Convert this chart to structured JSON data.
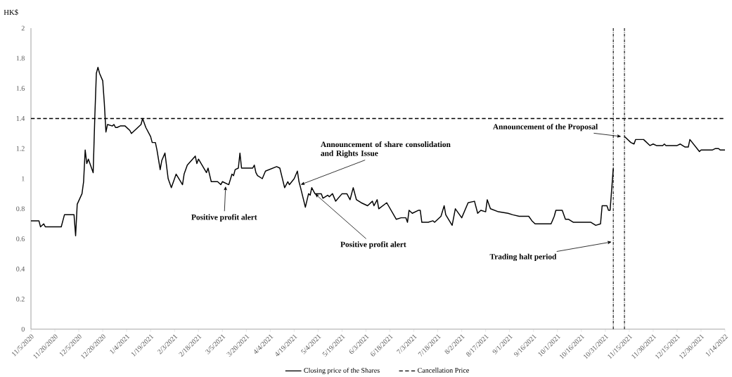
{
  "chart_data": {
    "type": "line",
    "ylabel": "HK$",
    "x": [
      "2020-11-05",
      "2020-11-10",
      "2020-11-11",
      "2020-11-13",
      "2020-11-14",
      "2020-11-24",
      "2020-11-25",
      "2020-11-26",
      "2020-12-02",
      "2020-12-03",
      "2020-12-04",
      "2020-12-07",
      "2020-12-08",
      "2020-12-09",
      "2020-12-10",
      "2020-12-11",
      "2020-12-14",
      "2020-12-15",
      "2020-12-16",
      "2020-12-17",
      "2020-12-18",
      "2020-12-20",
      "2020-12-21",
      "2020-12-22",
      "2020-12-23",
      "2020-12-26",
      "2020-12-27",
      "2020-12-28",
      "2020-12-29",
      "2020-12-31",
      "2021-01-03",
      "2021-01-06",
      "2021-01-07",
      "2021-01-09",
      "2021-01-11",
      "2021-01-13",
      "2021-01-14",
      "2021-01-16",
      "2021-01-19",
      "2021-01-20",
      "2021-01-22",
      "2021-01-23",
      "2021-01-25",
      "2021-01-26",
      "2021-01-28",
      "2021-01-30",
      "2021-02-01",
      "2021-02-04",
      "2021-02-08",
      "2021-02-09",
      "2021-02-11",
      "2021-02-16",
      "2021-02-17",
      "2021-02-18",
      "2021-02-23",
      "2021-02-24",
      "2021-02-26",
      "2021-03-02",
      "2021-03-04",
      "2021-03-05",
      "2021-03-09",
      "2021-03-11",
      "2021-03-12",
      "2021-03-13",
      "2021-03-15",
      "2021-03-16",
      "2021-03-17",
      "2021-03-24",
      "2021-03-25",
      "2021-03-26",
      "2021-03-27",
      "2021-03-30",
      "2021-04-01",
      "2021-04-08",
      "2021-04-10",
      "2021-04-13",
      "2021-04-15",
      "2021-04-16",
      "2021-04-19",
      "2021-04-21",
      "2021-04-22",
      "2021-04-23",
      "2021-04-26",
      "2021-04-28",
      "2021-04-29",
      "2021-04-30",
      "2021-05-02",
      "2021-05-06",
      "2021-05-07",
      "2021-05-10",
      "2021-05-11",
      "2021-05-13",
      "2021-05-15",
      "2021-05-19",
      "2021-05-22",
      "2021-05-24",
      "2021-05-26",
      "2021-05-28",
      "2021-05-31",
      "2021-06-02",
      "2021-06-04",
      "2021-06-07",
      "2021-06-08",
      "2021-06-10",
      "2021-06-11",
      "2021-06-16",
      "2021-06-22",
      "2021-06-25",
      "2021-06-28",
      "2021-06-29",
      "2021-06-30",
      "2021-07-02",
      "2021-07-06",
      "2021-07-07",
      "2021-07-08",
      "2021-07-12",
      "2021-07-15",
      "2021-07-16",
      "2021-07-20",
      "2021-07-22",
      "2021-07-23",
      "2021-07-27",
      "2021-07-29",
      "2021-08-02",
      "2021-08-06",
      "2021-08-10",
      "2021-08-12",
      "2021-08-14",
      "2021-08-17",
      "2021-08-18",
      "2021-08-20",
      "2021-08-25",
      "2021-08-31",
      "2021-09-03",
      "2021-09-07",
      "2021-09-13",
      "2021-09-15",
      "2021-09-17",
      "2021-09-27",
      "2021-09-29",
      "2021-09-30",
      "2021-10-04",
      "2021-10-06",
      "2021-10-08",
      "2021-10-11",
      "2021-10-22",
      "2021-10-25",
      "2021-10-28",
      "2021-10-29",
      "2021-11-01",
      "2021-11-02",
      "2021-11-03",
      "2021-11-05",
      "2021-11-08",
      "2021-11-12",
      "2021-11-16",
      "2021-11-18",
      "2021-11-19",
      "2021-11-24",
      "2021-11-28",
      "2021-11-30",
      "2021-12-02",
      "2021-12-06",
      "2021-12-07",
      "2021-12-08",
      "2021-12-15",
      "2021-12-17",
      "2021-12-20",
      "2021-12-22",
      "2021-12-23",
      "2021-12-29",
      "2021-12-30",
      "2022-01-06",
      "2022-01-08",
      "2022-01-10",
      "2022-01-11",
      "2022-01-14"
    ],
    "series": [
      {
        "name": "Closing price of the Shares",
        "color": "#000000",
        "values": [
          0.72,
          0.72,
          0.68,
          0.7,
          0.68,
          0.68,
          0.72,
          0.76,
          0.76,
          0.62,
          0.83,
          0.9,
          0.98,
          1.19,
          1.1,
          1.13,
          1.04,
          1.4,
          1.7,
          1.74,
          1.7,
          1.65,
          1.5,
          1.31,
          1.36,
          1.35,
          1.36,
          1.34,
          1.34,
          1.35,
          1.35,
          1.32,
          1.3,
          1.32,
          1.34,
          1.36,
          1.4,
          1.34,
          1.28,
          1.24,
          1.24,
          1.19,
          1.06,
          1.12,
          1.17,
          1.0,
          0.94,
          1.03,
          0.96,
          1.03,
          1.09,
          1.15,
          1.1,
          1.13,
          1.04,
          1.07,
          0.98,
          0.98,
          0.96,
          0.98,
          0.96,
          1.03,
          1.02,
          1.06,
          1.07,
          1.17,
          1.07,
          1.07,
          1.09,
          1.04,
          1.02,
          1.0,
          1.05,
          1.08,
          1.07,
          0.94,
          0.98,
          0.96,
          1.0,
          1.05,
          0.98,
          0.94,
          0.81,
          0.9,
          0.89,
          0.94,
          0.9,
          0.9,
          0.87,
          0.89,
          0.88,
          0.9,
          0.85,
          0.9,
          0.9,
          0.86,
          0.94,
          0.86,
          0.84,
          0.83,
          0.82,
          0.85,
          0.82,
          0.86,
          0.8,
          0.84,
          0.73,
          0.74,
          0.74,
          0.71,
          0.79,
          0.77,
          0.79,
          0.79,
          0.71,
          0.71,
          0.72,
          0.71,
          0.75,
          0.82,
          0.76,
          0.69,
          0.8,
          0.74,
          0.84,
          0.85,
          0.77,
          0.79,
          0.78,
          0.86,
          0.8,
          0.78,
          0.77,
          0.76,
          0.75,
          0.75,
          0.72,
          0.7,
          0.7,
          0.75,
          0.79,
          0.79,
          0.73,
          0.73,
          0.71,
          0.71,
          0.69,
          0.7,
          0.82,
          0.82,
          0.79,
          0.79,
          1.07,
          null,
          1.28,
          1.24,
          1.23,
          1.26,
          1.26,
          1.22,
          1.23,
          1.22,
          1.22,
          1.23,
          1.22,
          1.22,
          1.23,
          1.21,
          1.21,
          1.26,
          1.18,
          1.19,
          1.19,
          1.2,
          1.2,
          1.19,
          1.19
        ]
      }
    ],
    "xlim": [
      "2020-11-05",
      "2022-01-14"
    ],
    "xticks": [
      {
        "value": "2020-11-05",
        "label": "11/5/2020"
      },
      {
        "value": "2020-11-20",
        "label": "11/20/2020"
      },
      {
        "value": "2020-12-05",
        "label": "12/5/2020"
      },
      {
        "value": "2020-12-20",
        "label": "12/20/2020"
      },
      {
        "value": "2021-01-04",
        "label": "1/4/2021"
      },
      {
        "value": "2021-01-19",
        "label": "1/19/2021"
      },
      {
        "value": "2021-02-03",
        "label": "2/3/2021"
      },
      {
        "value": "2021-02-18",
        "label": "2/18/2021"
      },
      {
        "value": "2021-03-05",
        "label": "3/5/2021"
      },
      {
        "value": "2021-03-20",
        "label": "3/20/2021"
      },
      {
        "value": "2021-04-04",
        "label": "4/4/2021"
      },
      {
        "value": "2021-04-19",
        "label": "4/19/2021"
      },
      {
        "value": "2021-05-04",
        "label": "5/4/2021"
      },
      {
        "value": "2021-05-19",
        "label": "5/19/2021"
      },
      {
        "value": "2021-06-03",
        "label": "6/3/2021"
      },
      {
        "value": "2021-06-18",
        "label": "6/18/2021"
      },
      {
        "value": "2021-07-03",
        "label": "7/3/2021"
      },
      {
        "value": "2021-07-18",
        "label": "7/18/2021"
      },
      {
        "value": "2021-08-02",
        "label": "8/2/2021"
      },
      {
        "value": "2021-08-17",
        "label": "8/17/2021"
      },
      {
        "value": "2021-09-01",
        "label": "9/1/2021"
      },
      {
        "value": "2021-09-16",
        "label": "9/16/2021"
      },
      {
        "value": "2021-10-01",
        "label": "10/1/2021"
      },
      {
        "value": "2021-10-16",
        "label": "10/16/2021"
      },
      {
        "value": "2021-10-31",
        "label": "10/31/2021"
      },
      {
        "value": "2021-11-15",
        "label": "11/15/2021"
      },
      {
        "value": "2021-11-30",
        "label": "11/30/2021"
      },
      {
        "value": "2021-12-15",
        "label": "12/15/2021"
      },
      {
        "value": "2021-12-30",
        "label": "12/30/2021"
      },
      {
        "value": "2022-01-14",
        "label": "1/14/2022"
      }
    ],
    "ylim": [
      0,
      2
    ],
    "yticks": [
      0,
      0.2,
      0.4,
      0.6,
      0.8,
      1,
      1.2,
      1.4,
      1.6,
      1.8,
      2
    ],
    "ref_lines": [
      {
        "axis": "y",
        "value": 1.4,
        "label": "Cancellation Price",
        "color": "#000000",
        "line_style": "dashed"
      },
      {
        "axis": "x",
        "value": "2021-11-05",
        "color": "#000000",
        "line_style": "dotted"
      },
      {
        "axis": "x",
        "value": "2021-11-12",
        "color": "#000000",
        "line_style": "dotted"
      }
    ],
    "annotations": [
      {
        "text": "Positive profit alert",
        "x": "2021-03-07",
        "y": 0.95
      },
      {
        "text": "Announcement of share consolidation and Rights Issue",
        "x": "2021-04-23",
        "y": 0.96
      },
      {
        "text": "Positive profit alert",
        "x": "2021-05-02",
        "y": 0.9
      },
      {
        "text": "Trading halt period",
        "x": "2021-11-04",
        "y": 0.58
      },
      {
        "text": "Announcement of the Proposal",
        "x": "2021-11-10",
        "y": 1.28
      }
    ],
    "legend": "bottom",
    "grid": false,
    "marker": "none",
    "line_style": "solid"
  }
}
